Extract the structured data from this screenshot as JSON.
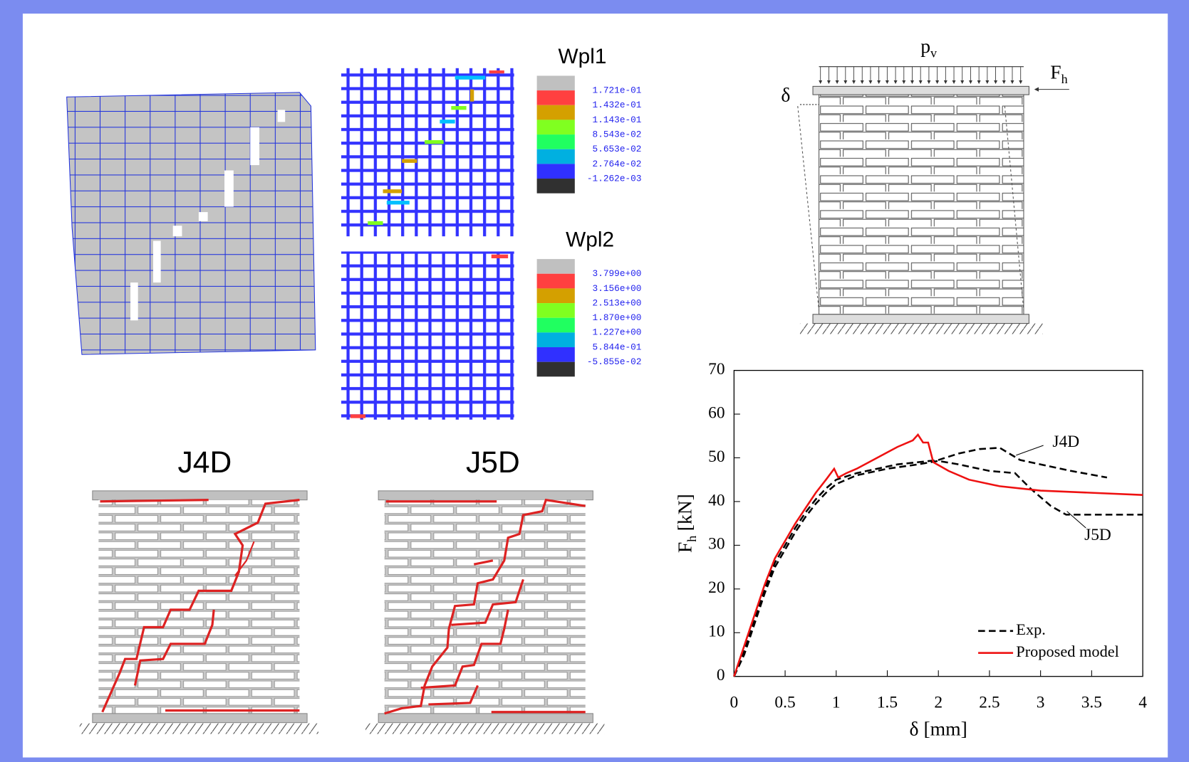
{
  "fe_model": {
    "wpl1": {
      "title": "Wpl1",
      "levels": [
        "1.721e-01",
        "1.432e-01",
        "1.143e-01",
        "8.543e-02",
        "5.653e-02",
        "2.764e-02",
        "-1.262e-03"
      ]
    },
    "wpl2": {
      "title": "Wpl2",
      "levels": [
        "3.799e+00",
        "3.156e+00",
        "2.513e+00",
        "1.870e+00",
        "1.227e+00",
        "5.844e-01",
        "-5.855e-02"
      ]
    }
  },
  "tests": [
    {
      "title": "J4D"
    },
    {
      "title": "J5D"
    }
  ],
  "scheme": {
    "vertical_load": {
      "main": "p",
      "sub": "v"
    },
    "horizontal_load": {
      "main": "F",
      "sub": "h"
    },
    "displacement": "δ"
  },
  "chart_data": {
    "type": "line",
    "xlabel": "δ [mm]",
    "ylabel": {
      "main": "F",
      "sub": "h",
      "unit": "[kN]"
    },
    "xlim": [
      0,
      4
    ],
    "ylim": [
      0,
      70
    ],
    "xticks": [
      0,
      0.5,
      1,
      1.5,
      2,
      2.5,
      3,
      3.5,
      4
    ],
    "yticks": [
      0,
      10,
      20,
      30,
      40,
      50,
      60,
      70
    ],
    "legend_label": "Exp.",
    "series": [
      {
        "name": "J4D",
        "color": "#000000",
        "dashed": true,
        "x": [
          0,
          0.1,
          0.2,
          0.3,
          0.4,
          0.5,
          0.6,
          0.7,
          0.8,
          0.9,
          1.0,
          1.2,
          1.4,
          1.6,
          1.8,
          2.0,
          2.2,
          2.4,
          2.6,
          2.8,
          3.0,
          3.3,
          3.65
        ],
        "values": [
          0,
          6,
          13,
          20,
          26,
          30,
          34,
          37.5,
          40.5,
          43,
          45,
          46.5,
          47.5,
          48.5,
          49,
          49.5,
          51,
          52,
          52.3,
          49.5,
          48.5,
          47,
          45.5
        ]
      },
      {
        "name": "J5D",
        "color": "#000000",
        "dashed": true,
        "x": [
          0,
          0.1,
          0.2,
          0.3,
          0.4,
          0.5,
          0.6,
          0.7,
          0.8,
          0.9,
          1.0,
          1.2,
          1.5,
          1.8,
          2.0,
          2.2,
          2.5,
          2.75,
          2.9,
          3.1,
          3.25,
          3.5,
          4.0
        ],
        "values": [
          0,
          5,
          12,
          19,
          25,
          29,
          33,
          36.5,
          39.5,
          42,
          44,
          46,
          47.5,
          48.5,
          49.3,
          48.5,
          47,
          46.5,
          43,
          39,
          37,
          37,
          37
        ]
      },
      {
        "name": "Proposed model",
        "color": "#ee1111",
        "dashed": false,
        "x": [
          0,
          0.1,
          0.2,
          0.3,
          0.4,
          0.5,
          0.6,
          0.7,
          0.8,
          0.9,
          0.98,
          1.02,
          1.1,
          1.2,
          1.4,
          1.6,
          1.75,
          1.8,
          1.85,
          1.9,
          1.95,
          2.1,
          2.3,
          2.6,
          3.0,
          3.5,
          4.0
        ],
        "values": [
          0,
          7,
          14,
          21,
          27,
          31,
          35,
          38.5,
          42,
          45,
          47.5,
          45.5,
          46.5,
          47.5,
          50,
          52.5,
          54,
          55.3,
          53.5,
          53.5,
          49,
          47,
          45,
          43.5,
          42.5,
          42,
          41.5
        ]
      }
    ]
  }
}
